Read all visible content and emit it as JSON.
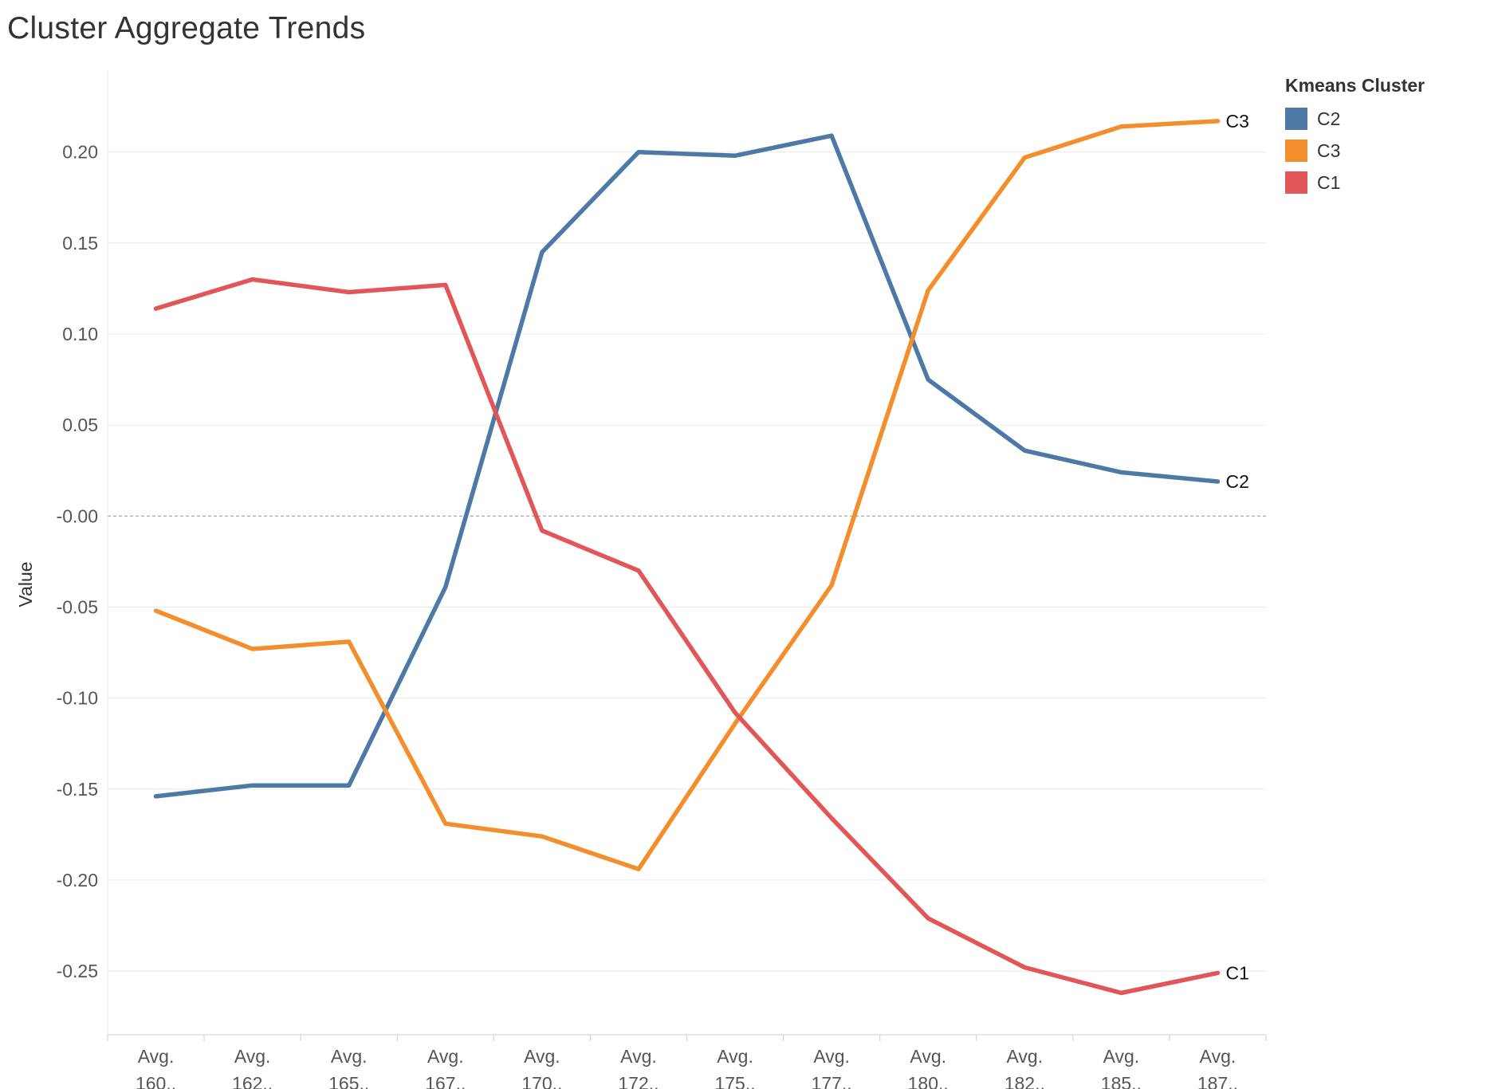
{
  "chart_data": {
    "type": "line",
    "title": "Cluster Aggregate Trends",
    "xlabel": "",
    "ylabel": "Value",
    "ylim": [
      -0.285,
      0.245
    ],
    "y_ticks": [
      0.2,
      0.15,
      0.1,
      0.05,
      0.0,
      -0.05,
      -0.1,
      -0.15,
      -0.2,
      -0.25
    ],
    "y_tick_labels": [
      "0.20",
      "0.15",
      "0.10",
      "0.05",
      "-0.00",
      "-0.05",
      "-0.10",
      "-0.15",
      "-0.20",
      "-0.25"
    ],
    "categories": [
      "Avg. 160..",
      "Avg. 162..",
      "Avg. 165..",
      "Avg. 167..",
      "Avg. 170..",
      "Avg. 172..",
      "Avg. 175..",
      "Avg. 177..",
      "Avg. 180..",
      "Avg. 182..",
      "Avg. 185..",
      "Avg. 187.."
    ],
    "category_lines": [
      [
        "Avg.",
        "160.."
      ],
      [
        "Avg.",
        "162.."
      ],
      [
        "Avg.",
        "165.."
      ],
      [
        "Avg.",
        "167.."
      ],
      [
        "Avg.",
        "170.."
      ],
      [
        "Avg.",
        "172.."
      ],
      [
        "Avg.",
        "175.."
      ],
      [
        "Avg.",
        "177.."
      ],
      [
        "Avg.",
        "180.."
      ],
      [
        "Avg.",
        "182.."
      ],
      [
        "Avg.",
        "185.."
      ],
      [
        "Avg.",
        "187.."
      ]
    ],
    "zero_line": "dashed",
    "grid": true,
    "legend_position": "top-right",
    "legend_title": "Kmeans Cluster",
    "series": [
      {
        "name": "C2",
        "color": "#4e79a7",
        "values": [
          -0.154,
          -0.148,
          -0.148,
          -0.039,
          0.145,
          0.2,
          0.198,
          0.209,
          0.075,
          0.036,
          0.024,
          0.019
        ]
      },
      {
        "name": "C3",
        "color": "#f28e2b",
        "values": [
          -0.052,
          -0.073,
          -0.069,
          -0.169,
          -0.176,
          -0.194,
          -0.114,
          -0.038,
          0.124,
          0.197,
          0.214,
          0.217
        ]
      },
      {
        "name": "C1",
        "color": "#e15759",
        "values": [
          0.114,
          0.13,
          0.123,
          0.127,
          -0.008,
          -0.03,
          -0.108,
          -0.166,
          -0.221,
          -0.248,
          -0.262,
          -0.251
        ]
      }
    ]
  }
}
